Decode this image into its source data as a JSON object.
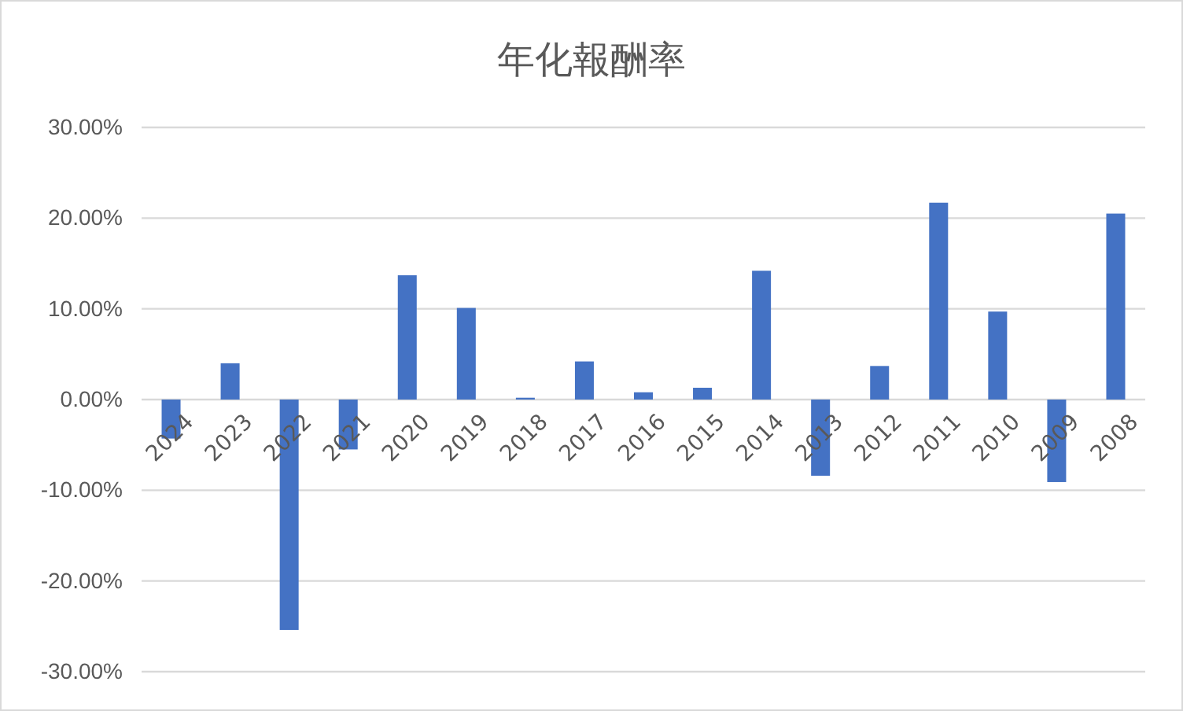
{
  "chart_data": {
    "type": "bar",
    "title": "年化報酬率",
    "categories": [
      "2024",
      "2023",
      "2022",
      "2021",
      "2020",
      "2019",
      "2018",
      "2017",
      "2016",
      "2015",
      "2014",
      "2013",
      "2012",
      "2011",
      "2010",
      "2009",
      "2008"
    ],
    "values": [
      -4.3,
      4.0,
      -25.4,
      -5.5,
      13.7,
      10.1,
      0.2,
      4.2,
      0.8,
      1.3,
      14.2,
      -8.4,
      3.7,
      21.7,
      9.7,
      -9.1,
      20.5
    ],
    "color": "#4472c4",
    "ylim": [
      -30,
      30
    ],
    "yticks": [
      {
        "value": -30,
        "label": "-30.00%"
      },
      {
        "value": -20,
        "label": "-20.00%"
      },
      {
        "value": -10,
        "label": "-10.00%"
      },
      {
        "value": 0,
        "label": "0.00%"
      },
      {
        "value": 10,
        "label": "10.00%"
      },
      {
        "value": 20,
        "label": "20.00%"
      },
      {
        "value": 30,
        "label": "30.00%"
      }
    ],
    "grid": "y"
  }
}
